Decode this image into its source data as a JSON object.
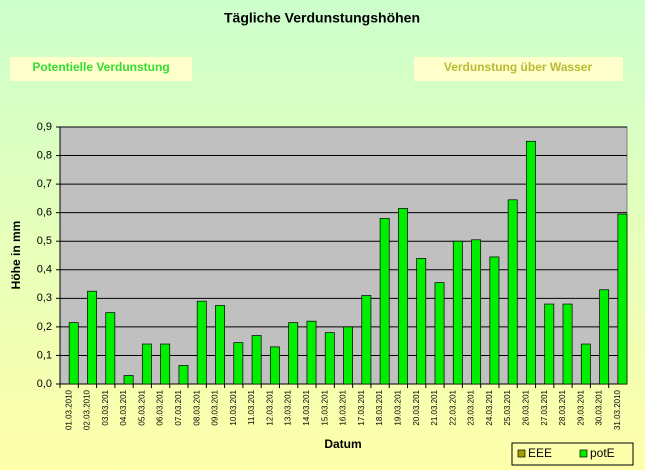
{
  "chart_data": {
    "type": "bar",
    "title": "Tägliche Verdunstungshöhen",
    "buttons": [
      "Potentielle Verdunstung",
      "Verdunstung über Wasser"
    ],
    "ylabel": "Höhe in mm",
    "xlabel": "Datum",
    "categories": [
      "01.03.2010",
      "02.03.2010",
      "03.03.201",
      "04.03.201",
      "05.03.201",
      "06.03.201",
      "07.03.201",
      "08.03.201",
      "09.03.201",
      "10.03.201",
      "11.03.201",
      "12.03.201",
      "13.03.201",
      "14.03.201",
      "15.03.201",
      "16.03.201",
      "17.03.201",
      "18.03.201",
      "19.03.201",
      "20.03.201",
      "21.03.201",
      "22.03.201",
      "23.03.201",
      "24.03.201",
      "25.03.201",
      "26.03.201",
      "27.03.201",
      "28.03.201",
      "29.03.201",
      "30.03.201",
      "31.03.2010"
    ],
    "series": [
      {
        "name": "EEE",
        "color": "#a0a000",
        "values": [
          null,
          null,
          null,
          null,
          null,
          null,
          null,
          null,
          null,
          null,
          null,
          null,
          null,
          null,
          null,
          null,
          null,
          null,
          null,
          null,
          null,
          null,
          null,
          null,
          null,
          null,
          null,
          null,
          null,
          null,
          null
        ]
      },
      {
        "name": "potE",
        "color": "#00ee00",
        "values": [
          0.215,
          0.325,
          0.25,
          0.03,
          0.14,
          0.14,
          0.065,
          0.29,
          0.275,
          0.145,
          0.17,
          0.13,
          0.215,
          0.22,
          0.18,
          0.2,
          0.31,
          0.58,
          0.615,
          0.44,
          0.355,
          0.5,
          0.505,
          0.445,
          0.645,
          0.85,
          0.28,
          0.28,
          0.14,
          0.33,
          0.595
        ]
      }
    ],
    "ylim": [
      0,
      0.9
    ],
    "yticks": [
      {
        "value": 0,
        "label": "0,0"
      },
      {
        "value": 0.1,
        "label": "0,1"
      },
      {
        "value": 0.2,
        "label": "0,2"
      },
      {
        "value": 0.3,
        "label": "0,3"
      },
      {
        "value": 0.4,
        "label": "0,4"
      },
      {
        "value": 0.5,
        "label": "0,5"
      },
      {
        "value": 0.6,
        "label": "0,6"
      },
      {
        "value": 0.7,
        "label": "0,7"
      },
      {
        "value": 0.8,
        "label": "0,8"
      },
      {
        "value": 0.9,
        "label": "0,9"
      }
    ],
    "grid": true,
    "legend": "bottom-right"
  }
}
